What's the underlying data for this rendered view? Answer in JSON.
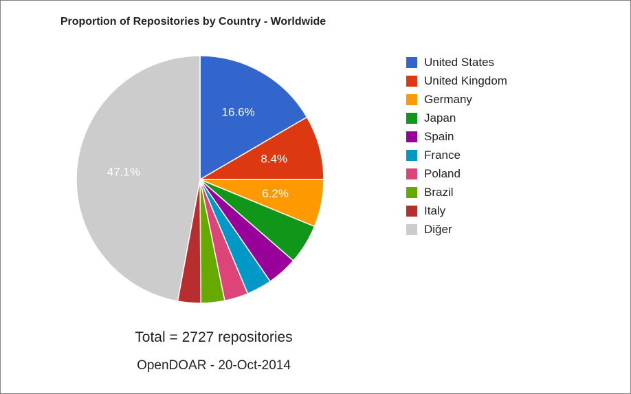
{
  "chart": {
    "type": "pie",
    "title": "Proportion of Repositories by Country - Worldwide",
    "title_fontsize": 16,
    "title_fontweight": "bold",
    "title_color": "#222222",
    "background_color": "#ffffff",
    "border_color": "#808080",
    "pie_stroke": "#ffffff",
    "pie_stroke_width": 1.5,
    "start_angle_deg": 0,
    "radius": 180,
    "slices": [
      {
        "label": "United States",
        "value": 16.6,
        "color": "#3366cc",
        "show_percent": true,
        "percent_text": "16.6%"
      },
      {
        "label": "United Kingdom",
        "value": 8.4,
        "color": "#dc3912",
        "show_percent": true,
        "percent_text": "8.4%"
      },
      {
        "label": "Germany",
        "value": 6.2,
        "color": "#ff9900",
        "show_percent": true,
        "percent_text": "6.2%"
      },
      {
        "label": "Japan",
        "value": 5.2,
        "color": "#109618",
        "show_percent": false,
        "percent_text": "5.2%"
      },
      {
        "label": "Spain",
        "value": 4.0,
        "color": "#990099",
        "show_percent": false,
        "percent_text": "4.0%"
      },
      {
        "label": "France",
        "value": 3.3,
        "color": "#0099c6",
        "show_percent": false,
        "percent_text": "3.3%"
      },
      {
        "label": "Poland",
        "value": 3.1,
        "color": "#dd4477",
        "show_percent": false,
        "percent_text": "3.1%"
      },
      {
        "label": "Brazil",
        "value": 3.1,
        "color": "#66aa00",
        "show_percent": false,
        "percent_text": "3.1%"
      },
      {
        "label": "Italy",
        "value": 3.0,
        "color": "#b82e2e",
        "show_percent": false,
        "percent_text": "3.0%"
      },
      {
        "label": "Diğer",
        "value": 47.1,
        "color": "#cccccc",
        "show_percent": true,
        "percent_text": "47.1%"
      }
    ],
    "label_fontsize": 17,
    "label_color": "#ffffff",
    "label_radius_factor": 0.62,
    "footer1": "Total = 2727 repositories",
    "footer1_fontsize": 21,
    "footer2": "OpenDOAR - 20-Oct-2014",
    "footer2_fontsize": 19,
    "footer_color": "#222222",
    "legend": {
      "fontsize": 17,
      "text_color": "#222222",
      "swatch_size": 16,
      "row_gap": 7
    }
  }
}
